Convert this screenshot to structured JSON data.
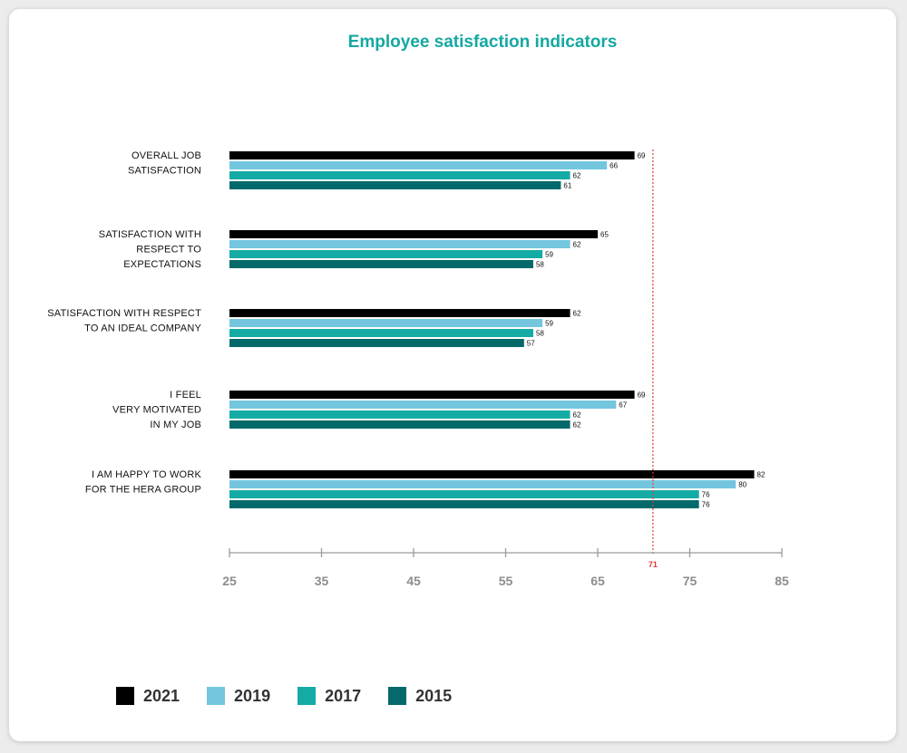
{
  "chart_data": {
    "type": "bar",
    "orientation": "horizontal",
    "title": "Employee satisfaction indicators",
    "categories": [
      [
        "OVERALL JOB",
        "SATISFACTION"
      ],
      [
        "SATISFACTION WITH",
        "RESPECT TO",
        "EXPECTATIONS"
      ],
      [
        "SATISFACTION WITH RESPECT",
        "TO AN IDEAL COMPANY"
      ],
      [
        "I FEEL",
        "VERY MOTIVATED",
        "IN MY JOB"
      ],
      [
        "I AM HAPPY TO WORK",
        "FOR THE HERA GROUP"
      ]
    ],
    "series": [
      {
        "name": "2021",
        "color": "#000000",
        "values": [
          69,
          65,
          62,
          69,
          82
        ]
      },
      {
        "name": "2019",
        "color": "#74c6df",
        "values": [
          66,
          62,
          59,
          67,
          80
        ]
      },
      {
        "name": "2017",
        "color": "#15aba5",
        "values": [
          62,
          59,
          58,
          62,
          76
        ]
      },
      {
        "name": "2015",
        "color": "#04696a",
        "values": [
          61,
          58,
          57,
          62,
          76
        ]
      }
    ],
    "xlim": [
      25,
      85
    ],
    "xticks": [
      25,
      35,
      45,
      55,
      65,
      75,
      85
    ],
    "reference_line": {
      "value": 71,
      "label": "71",
      "color": "#e53935",
      "style": "dotted"
    },
    "legend_position": "bottom-left",
    "grid": false
  }
}
